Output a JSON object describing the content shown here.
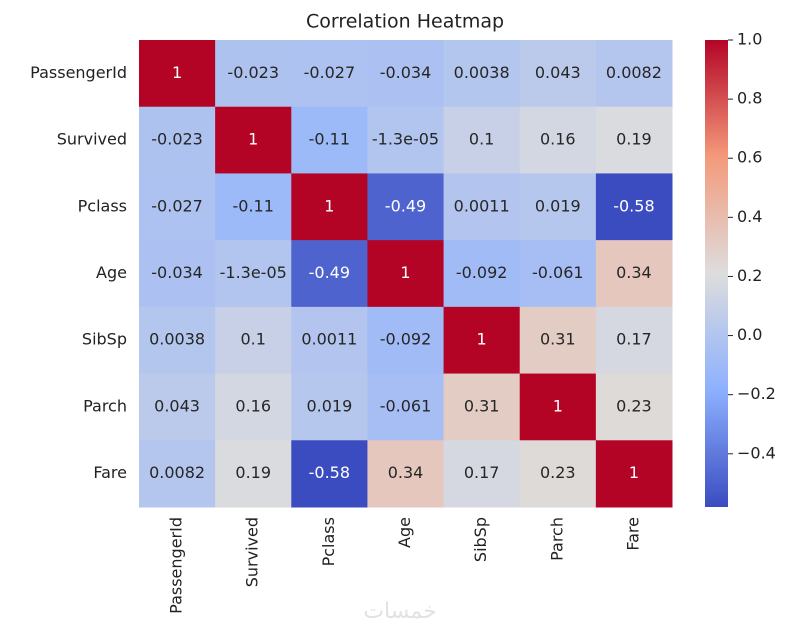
{
  "chart_data": {
    "type": "heatmap",
    "title": "Correlation Heatmap",
    "categories": [
      "PassengerId",
      "Survived",
      "Pclass",
      "Age",
      "SibSp",
      "Parch",
      "Fare"
    ],
    "values": [
      [
        1,
        -0.023,
        -0.027,
        -0.034,
        0.0038,
        0.043,
        0.0082
      ],
      [
        -0.023,
        1,
        -0.11,
        -1.3e-05,
        0.1,
        0.16,
        0.19
      ],
      [
        -0.027,
        -0.11,
        1,
        -0.49,
        0.0011,
        0.019,
        -0.58
      ],
      [
        -0.034,
        -1.3e-05,
        -0.49,
        1,
        -0.092,
        -0.061,
        0.34
      ],
      [
        0.0038,
        0.1,
        0.0011,
        -0.092,
        1,
        0.31,
        0.17
      ],
      [
        0.043,
        0.16,
        0.019,
        -0.061,
        0.31,
        1,
        0.23
      ],
      [
        0.0082,
        0.19,
        -0.58,
        0.34,
        0.17,
        0.23,
        1
      ]
    ],
    "value_labels": [
      [
        "1",
        "-0.023",
        "-0.027",
        "-0.034",
        "0.0038",
        "0.043",
        "0.0082"
      ],
      [
        "-0.023",
        "1",
        "-0.11",
        "-1.3e-05",
        "0.1",
        "0.16",
        "0.19"
      ],
      [
        "-0.027",
        "-0.11",
        "1",
        "-0.49",
        "0.0011",
        "0.019",
        "-0.58"
      ],
      [
        "-0.034",
        "-1.3e-05",
        "-0.49",
        "1",
        "-0.092",
        "-0.061",
        "0.34"
      ],
      [
        "0.0038",
        "0.1",
        "0.0011",
        "-0.092",
        "1",
        "0.31",
        "0.17"
      ],
      [
        "0.043",
        "0.16",
        "0.019",
        "-0.061",
        "0.31",
        "1",
        "0.23"
      ],
      [
        "0.0082",
        "0.19",
        "-0.58",
        "0.34",
        "0.17",
        "0.23",
        "1"
      ]
    ],
    "clim": [
      -0.58,
      1
    ],
    "cticks": [
      {
        "value": 1,
        "label": "1.0"
      },
      0.8,
      0.6,
      0.4,
      0.2,
      {
        "value": 0,
        "label": "0.0"
      },
      {
        "value": -0.2,
        "label": "−0.2"
      },
      {
        "value": -0.4,
        "label": "−0.4"
      }
    ],
    "colormap": [
      "#3b4cc0",
      "#8db0fe",
      "#dddddd",
      "#f49a7b",
      "#b40426"
    ],
    "watermark": "خمسات"
  }
}
